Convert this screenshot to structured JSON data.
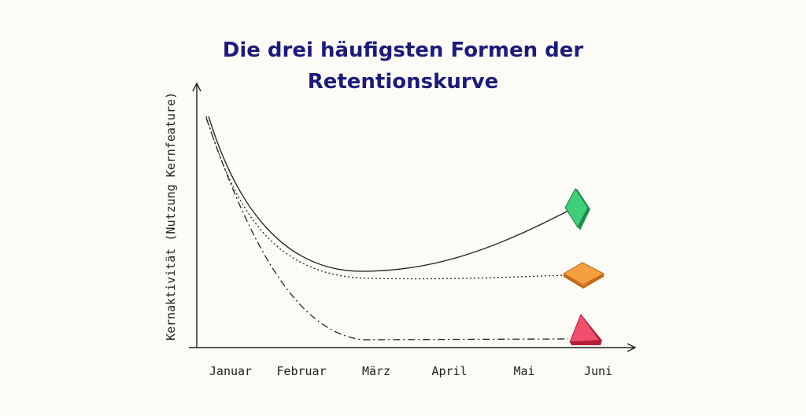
{
  "title": {
    "lines": [
      "Die drei häufigsten Formen der",
      "Retentionskurve"
    ]
  },
  "y_axis": {
    "label": "Kernaktivität (Nutzung Kernfeature)"
  },
  "x_axis": {
    "labels": [
      "Januar",
      "Februar",
      "März",
      "April",
      "Mai",
      "Juni"
    ]
  }
}
